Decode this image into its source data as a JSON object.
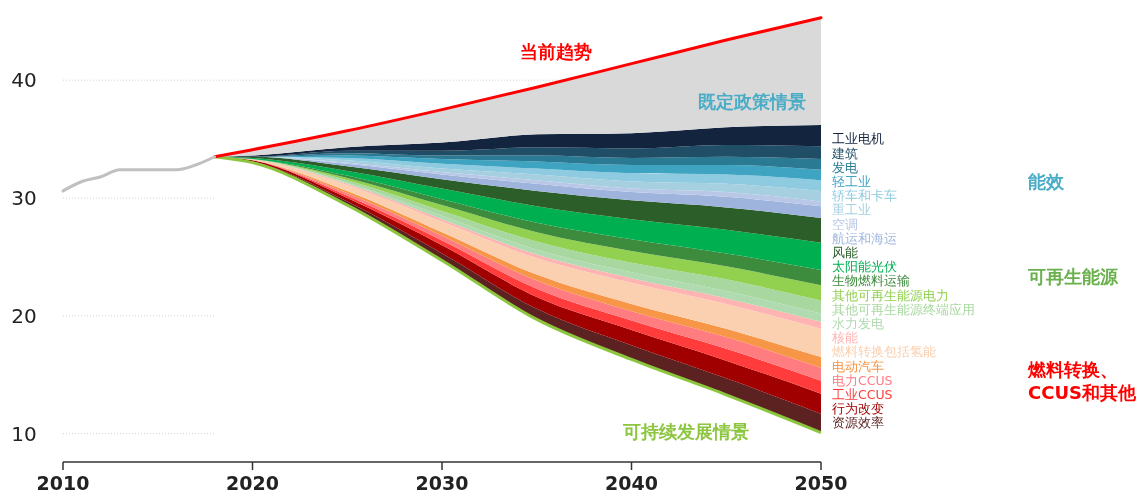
{
  "chart_data": {
    "type": "area",
    "x": [
      2018,
      2020,
      2025,
      2030,
      2035,
      2040,
      2045,
      2050
    ],
    "xlim": [
      2010,
      2050
    ],
    "xticks": [
      2010,
      2020,
      2030,
      2040,
      2050
    ],
    "ylim": [
      7.6,
      46.8
    ],
    "yticks": [
      10,
      20,
      30,
      40
    ],
    "grid": "y",
    "series": [
      {
        "name": "可持续发展情景",
        "color": "#8cc63f",
        "values": [
          33.5,
          33.0,
          29.4,
          24.7,
          19.7,
          16.3,
          13.3,
          10.1
        ]
      },
      {
        "name": "资源效率",
        "color": "#5c2222",
        "values": [
          33.5,
          33.1,
          29.7,
          25.3,
          20.6,
          17.5,
          14.7,
          11.7
        ]
      },
      {
        "name": "行为改变",
        "color": "#a00000",
        "values": [
          33.5,
          33.2,
          30.0,
          26.0,
          21.6,
          18.8,
          16.2,
          13.4
        ]
      },
      {
        "name": "工业CCUS",
        "color": "#ff3b3b",
        "values": [
          33.5,
          33.2,
          30.2,
          26.4,
          22.3,
          19.6,
          17.2,
          14.5
        ]
      },
      {
        "name": "电力CCUS",
        "color": "#ff7c80",
        "values": [
          33.5,
          33.2,
          30.4,
          26.8,
          23.0,
          20.4,
          18.2,
          15.6
        ]
      },
      {
        "name": "电动汽车",
        "color": "#f79646",
        "values": [
          33.5,
          33.2,
          30.6,
          27.1,
          23.5,
          21.0,
          18.9,
          16.5
        ]
      },
      {
        "name": "燃料转换包括氢能",
        "color": "#fbd0b0",
        "values": [
          33.5,
          33.3,
          31.1,
          28.0,
          24.9,
          22.8,
          21.0,
          18.9
        ]
      },
      {
        "name": "核能",
        "color": "#ffb3b3",
        "values": [
          33.5,
          33.3,
          31.2,
          28.2,
          25.2,
          23.2,
          21.5,
          19.5
        ]
      },
      {
        "name": "水力发电",
        "color": "#b0dbb0",
        "values": [
          33.5,
          33.3,
          31.3,
          28.5,
          25.6,
          23.7,
          22.1,
          20.2
        ]
      },
      {
        "name": "其他可再生能源终端应用",
        "color": "#a8d8a0",
        "values": [
          33.5,
          33.3,
          31.5,
          28.9,
          26.3,
          24.5,
          23.1,
          21.3
        ]
      },
      {
        "name": "其他可再生能源电力",
        "color": "#92d050",
        "values": [
          33.5,
          33.3,
          31.7,
          29.4,
          27.1,
          25.5,
          24.2,
          22.6
        ]
      },
      {
        "name": "生物燃料运输",
        "color": "#3d8b3d",
        "values": [
          33.5,
          33.3,
          31.9,
          29.9,
          27.9,
          26.5,
          25.3,
          23.9
        ]
      },
      {
        "name": "太阳能光伏",
        "color": "#00b050",
        "values": [
          33.5,
          33.4,
          32.3,
          30.8,
          29.3,
          28.2,
          27.3,
          26.2
        ]
      },
      {
        "name": "风能",
        "color": "#2c5e2a",
        "values": [
          33.5,
          33.5,
          32.7,
          31.6,
          30.6,
          29.8,
          29.2,
          28.3
        ]
      },
      {
        "name": "航运和海运",
        "color": "#9fb4dd",
        "values": [
          33.5,
          33.5,
          32.9,
          32.0,
          31.2,
          30.5,
          30.1,
          29.3
        ]
      },
      {
        "name": "空调",
        "color": "#b9c8e6",
        "values": [
          33.5,
          33.5,
          33.0,
          32.2,
          31.5,
          30.8,
          30.5,
          29.7
        ]
      },
      {
        "name": "重工业",
        "color": "#a6cfe0",
        "values": [
          33.5,
          33.5,
          33.2,
          32.5,
          32.0,
          31.4,
          31.2,
          30.6
        ]
      },
      {
        "name": "轿车和卡车",
        "color": "#8fcbe0",
        "values": [
          33.5,
          33.5,
          33.4,
          32.9,
          32.5,
          32.1,
          32.0,
          31.5
        ]
      },
      {
        "name": "轻工业",
        "color": "#3ea4c2",
        "values": [
          33.5,
          33.5,
          33.6,
          33.3,
          33.1,
          32.8,
          32.8,
          32.4
        ]
      },
      {
        "name": "发电",
        "color": "#2b7a94",
        "values": [
          33.5,
          33.5,
          33.8,
          33.6,
          33.6,
          33.4,
          33.5,
          33.3
        ]
      },
      {
        "name": "建筑",
        "color": "#1f4e66",
        "values": [
          33.5,
          33.5,
          34.0,
          34.0,
          34.3,
          34.2,
          34.5,
          34.4
        ]
      },
      {
        "name": "工业电机",
        "color": "#13243f",
        "values": [
          33.5,
          33.6,
          34.3,
          34.7,
          35.4,
          35.5,
          36.0,
          36.2
        ]
      },
      {
        "name": "当前趋势",
        "color": "#d9d9d9",
        "values": [
          33.5,
          34.1,
          35.7,
          37.5,
          39.4,
          41.4,
          43.4,
          45.3
        ]
      },
      {
        "type": "line",
        "color": "#c0c0c0",
        "x": [
          2010,
          2011,
          2012,
          2013,
          2014,
          2015,
          2016,
          2017,
          2018
        ],
        "values": [
          30.6,
          31.4,
          31.8,
          32.4,
          32.4,
          32.4,
          32.4,
          32.8,
          33.5
        ]
      }
    ],
    "annotations": [
      "能效",
      "可再生能源",
      "燃料转换、CCUS和其他",
      "既定政策情景"
    ]
  }
}
